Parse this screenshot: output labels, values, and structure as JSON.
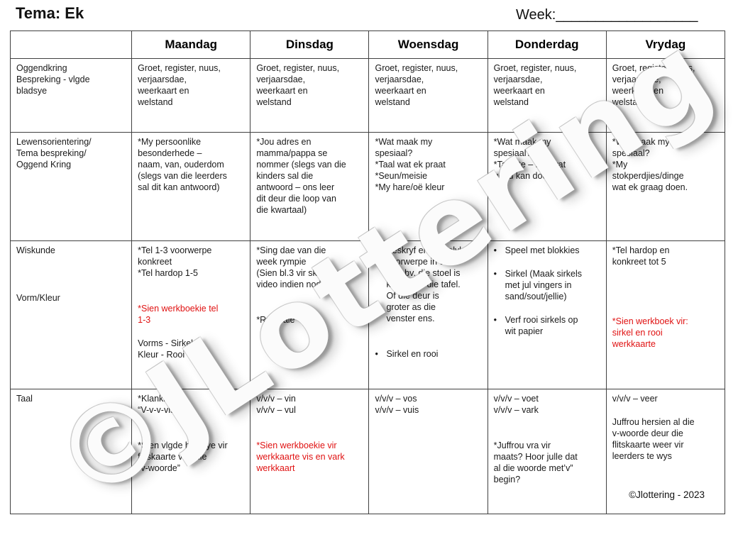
{
  "page": {
    "tema_label": "Tema: Ek",
    "week_label": "Week:",
    "week_line": "__________________",
    "watermark": "©JLottering",
    "footer": "©Jlottering - 2023",
    "accent_red": "#e01212"
  },
  "table": {
    "bullet_char": "•",
    "columns": [
      "",
      "Maandag",
      "Dinsdag",
      "Woensdag",
      "Donderdag",
      "Vrydag"
    ],
    "rows": [
      {
        "label": [
          {
            "text": "Oggendkring\nBespreking - vlgde\nbladsye"
          }
        ],
        "cells": [
          [
            {
              "text": "Groet, register, nuus,\nverjaarsdae,\nweerkaart en\nwelstand"
            }
          ],
          [
            {
              "text": "Groet, register, nuus,\nverjaarsdae,\nweerkaart en\nwelstand"
            }
          ],
          [
            {
              "text": "Groet, register, nuus,\nverjaarsdae,\nweerkaart en\nwelstand"
            }
          ],
          [
            {
              "text": "Groet, register, nuus,\nverjaarsdae,\nweerkaart en\nwelstand"
            }
          ],
          [
            {
              "text": "Groet, register, nuus,\nverjaarsdae,\nweerkaart en\nwelstand"
            }
          ]
        ]
      },
      {
        "label": [
          {
            "text": "Lewensorientering/\nTema bespreking/\nOggend Kring"
          }
        ],
        "cells": [
          [
            {
              "text": "*My persoonlike\nbesonderhede –\nnaam, van, ouderdom\n(slegs van die leerders\nsal dit kan antwoord)"
            }
          ],
          [
            {
              "text": "*Jou adres en\nmamma/pappa se\nnommer (slegs van die\nkinders sal die\nantwoord – ons leer\ndit deur die loop van\ndie kwartaal)"
            }
          ],
          [
            {
              "text": "*Wat maak my\nspesiaal?\n*Taal wat ek praat\n*Seun/meisie\n*My hare/oë kleur"
            }
          ],
          [
            {
              "text": "*Wat maak my\nspesiaal?\n*Talente – iets wat\ngoed kan doen"
            }
          ],
          [
            {
              "text": "*Wat maak my\nspesiaal?\n*My\nstokperdjies/dinge\nwat ek graag doen."
            }
          ]
        ]
      },
      {
        "label": [
          {
            "text": "Wiskunde"
          },
          {
            "text": ""
          },
          {
            "text": ""
          },
          {
            "text": ""
          },
          {
            "text": "Vorm/Kleur"
          }
        ],
        "cells": [
          [
            {
              "text": "*Tel 1-3 voorwerpe\nkonkreet\n*Tel hardop 1-5"
            },
            {
              "text": ""
            },
            {
              "text": ""
            },
            {
              "text": "*Sien werkboekie tel\n1-3",
              "red": true
            },
            {
              "text": ""
            },
            {
              "text": "Vorms - Sirkel\nKleur - Rooi"
            }
          ],
          [
            {
              "text": "*Sing dae van die\nweek rympie\n(Sien bl.3 vir skakel na\nvideo indien nodig)"
            },
            {
              "text": ""
            },
            {
              "text": ""
            },
            {
              "text": "*Rygkrale"
            }
          ],
          [
            {
              "text": "Beskryf en vergelyk\nvoorwerpe in die\nklas bv. die stoel is\nkleiner as die tafel.\nOf die deur is\ngroter as die\nvenster ens.",
              "bullet": true
            },
            {
              "text": ""
            },
            {
              "text": ""
            },
            {
              "text": "Sirkel en rooi",
              "bullet": true
            }
          ],
          [
            {
              "text": "Speel met blokkies",
              "bullet": true
            },
            {
              "text": ""
            },
            {
              "text": "Sirkel (Maak sirkels\nmet jul vingers in\nsand/sout/jellie)",
              "bullet": true
            },
            {
              "text": ""
            },
            {
              "text": "Verf rooi sirkels op\nwit papier",
              "bullet": true
            }
          ],
          [
            {
              "text": "*Tel hardop en\nkonkreet tot 5"
            },
            {
              "text": ""
            },
            {
              "text": ""
            },
            {
              "text": ""
            },
            {
              "text": ""
            },
            {
              "text": "*Sien werkboek vir:\nsirkel en rooi\nwerkkaarte",
              "red": true
            }
          ]
        ]
      },
      {
        "label": [
          {
            "text": "Taal"
          }
        ],
        "cells": [
          [
            {
              "text": "*Klankie\n“V-v-v-vis”"
            },
            {
              "text": ""
            },
            {
              "text": ""
            },
            {
              "text": "*Sien vlgde bladsye vir\nflitskaarte van die\n“v-woorde”"
            }
          ],
          [
            {
              "text": "v/v/v – vin\nv/v/v – vul"
            },
            {
              "text": ""
            },
            {
              "text": ""
            },
            {
              "text": "*Sien werkboekie vir\nwerkkaarte vis en vark\nwerkkaart",
              "red": true
            }
          ],
          [
            {
              "text": "v/v/v – vos\nv/v/v – vuis"
            }
          ],
          [
            {
              "text": "v/v/v – voet\nv/v/v – vark"
            },
            {
              "text": ""
            },
            {
              "text": ""
            },
            {
              "text": "*Juffrou vra vir\nmaats?  Hoor julle dat\nal die woorde met’v”\nbegin?"
            }
          ],
          [
            {
              "text": "v/v/v – veer"
            },
            {
              "text": ""
            },
            {
              "text": "Juffrou hersien al die\nv-woorde deur die\nflitskaarte weer vir\nleerders te wys"
            }
          ]
        ]
      }
    ]
  }
}
